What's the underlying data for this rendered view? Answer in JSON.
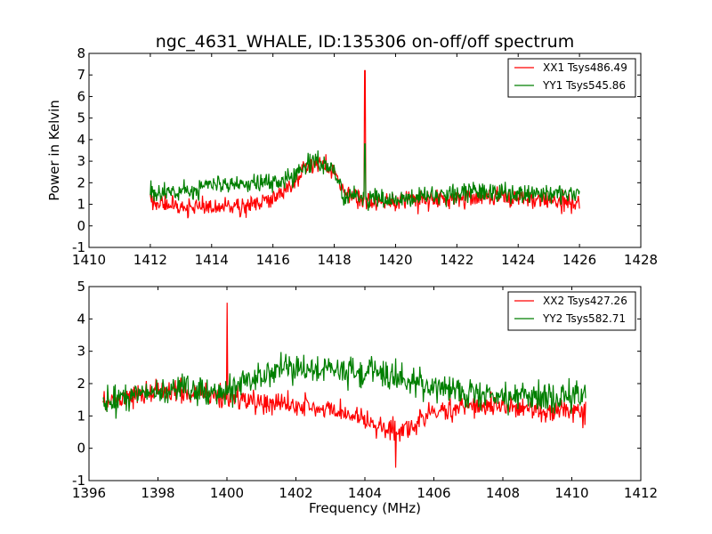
{
  "chart_data": [
    {
      "type": "line",
      "title": "ngc_4631_WHALE, ID:135306 on-off/off spectrum",
      "xlabel": "",
      "ylabel": "Power in Kelvin",
      "xlim": [
        1410,
        1428
      ],
      "ylim": [
        -1,
        8
      ],
      "xticks": [
        1410,
        1412,
        1414,
        1416,
        1418,
        1420,
        1422,
        1424,
        1426,
        1428
      ],
      "yticks": [
        -1,
        0,
        1,
        2,
        3,
        4,
        5,
        6,
        7,
        8
      ],
      "x_range": [
        1412,
        1426
      ],
      "legend": "top-right",
      "grid": false,
      "series": [
        {
          "name": "XX1 Tsys486.49",
          "color": "#ff0000",
          "baseline": [
            [
              1412,
              1.1
            ],
            [
              1413,
              0.9
            ],
            [
              1414,
              0.8
            ],
            [
              1415,
              0.9
            ],
            [
              1416,
              1.3
            ],
            [
              1416.5,
              1.7
            ],
            [
              1417,
              2.6
            ],
            [
              1417.5,
              2.9
            ],
            [
              1418,
              2.6
            ],
            [
              1418.3,
              1.5
            ],
            [
              1419,
              1.2
            ],
            [
              1420,
              1.1
            ],
            [
              1421,
              1.2
            ],
            [
              1422,
              1.3
            ],
            [
              1423,
              1.3
            ],
            [
              1424,
              1.3
            ],
            [
              1425,
              1.2
            ],
            [
              1426,
              1.1
            ]
          ],
          "noise": 0.28,
          "spikes": [
            [
              1419,
              7.2
            ]
          ]
        },
        {
          "name": "YY1 Tsys545.86",
          "color": "#007f00",
          "baseline": [
            [
              1412,
              1.5
            ],
            [
              1413,
              1.6
            ],
            [
              1414,
              1.9
            ],
            [
              1415,
              2.0
            ],
            [
              1416,
              2.0
            ],
            [
              1416.5,
              2.2
            ],
            [
              1417,
              2.8
            ],
            [
              1417.5,
              3.0
            ],
            [
              1418,
              2.5
            ],
            [
              1418.3,
              1.5
            ],
            [
              1419,
              1.2
            ],
            [
              1420,
              1.2
            ],
            [
              1421,
              1.4
            ],
            [
              1422,
              1.5
            ],
            [
              1423,
              1.6
            ],
            [
              1424,
              1.5
            ],
            [
              1425,
              1.5
            ],
            [
              1426,
              1.5
            ]
          ],
          "noise": 0.28,
          "spikes": [
            [
              1419,
              3.8
            ]
          ]
        }
      ]
    },
    {
      "type": "line",
      "title": "",
      "xlabel": "Frequency (MHz)",
      "ylabel": "",
      "xlim": [
        1396,
        1412
      ],
      "ylim": [
        -1,
        5
      ],
      "xticks": [
        1396,
        1398,
        1400,
        1402,
        1404,
        1406,
        1408,
        1410,
        1412
      ],
      "yticks": [
        -1,
        0,
        1,
        2,
        3,
        4,
        5
      ],
      "x_range": [
        1396.4,
        1410.4
      ],
      "legend": "top-right",
      "grid": false,
      "series": [
        {
          "name": "XX2 Tsys427.26",
          "color": "#ff0000",
          "baseline": [
            [
              1396.4,
              1.4
            ],
            [
              1397.5,
              1.7
            ],
            [
              1398.5,
              1.8
            ],
            [
              1399.5,
              1.6
            ],
            [
              1400,
              1.6
            ],
            [
              1401,
              1.4
            ],
            [
              1402,
              1.3
            ],
            [
              1403,
              1.2
            ],
            [
              1404,
              0.8
            ],
            [
              1405,
              0.5
            ],
            [
              1405.5,
              0.8
            ],
            [
              1406,
              1.1
            ],
            [
              1407,
              1.3
            ],
            [
              1408,
              1.3
            ],
            [
              1409,
              1.2
            ],
            [
              1410.4,
              1.1
            ]
          ],
          "noise": 0.22,
          "spikes": [
            [
              1400,
              4.5
            ],
            [
              1404.9,
              -0.6
            ]
          ]
        },
        {
          "name": "YY2 Tsys582.71",
          "color": "#007f00",
          "baseline": [
            [
              1396.4,
              1.5
            ],
            [
              1397.5,
              1.6
            ],
            [
              1398.5,
              1.8
            ],
            [
              1399.5,
              1.7
            ],
            [
              1400,
              1.8
            ],
            [
              1401,
              2.3
            ],
            [
              1402,
              2.5
            ],
            [
              1403,
              2.5
            ],
            [
              1404,
              2.3
            ],
            [
              1405,
              2.2
            ],
            [
              1406,
              1.9
            ],
            [
              1407,
              1.7
            ],
            [
              1408,
              1.6
            ],
            [
              1409,
              1.6
            ],
            [
              1410.4,
              1.6
            ]
          ],
          "noise": 0.3,
          "spikes": []
        }
      ]
    }
  ]
}
